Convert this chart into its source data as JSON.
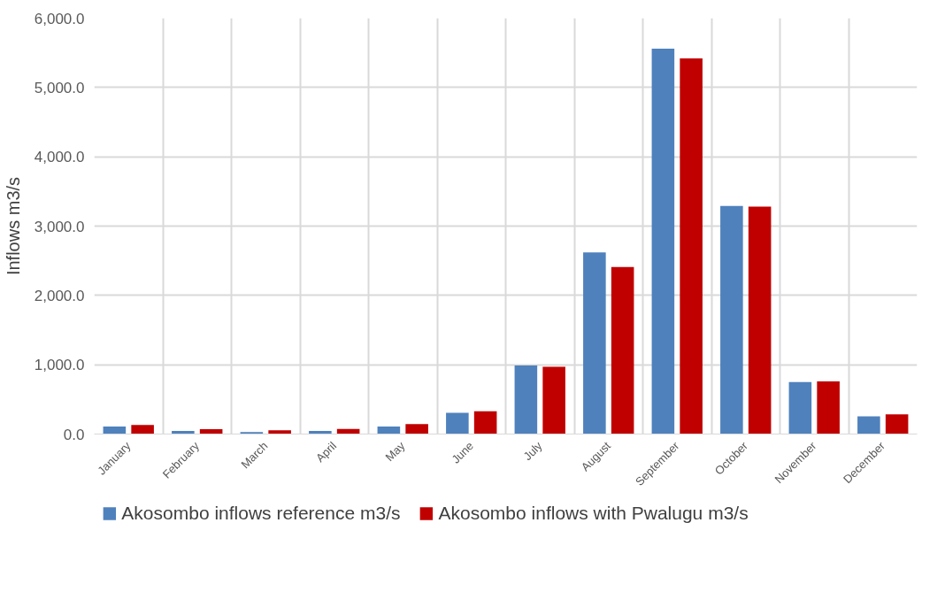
{
  "chart_data": {
    "type": "bar",
    "ylabel": "Inflows m3/s",
    "categories": [
      "January",
      "February",
      "March",
      "April",
      "May",
      "June",
      "July",
      "August",
      "September",
      "October",
      "November",
      "December"
    ],
    "series": [
      {
        "name": "Akosombo inflows reference m3/s",
        "color": "#4f81bd",
        "values": [
          110,
          45,
          30,
          45,
          110,
          305,
          990,
          2620,
          5560,
          3290,
          750,
          255
        ]
      },
      {
        "name": "Akosombo inflows with Pwalugu m3/s",
        "color": "#c00000",
        "values": [
          130,
          70,
          55,
          75,
          145,
          330,
          970,
          2410,
          5420,
          3280,
          760,
          285
        ]
      }
    ],
    "ylim": [
      0,
      6000
    ],
    "yticks": [
      {
        "value": 0,
        "label": "0.0"
      },
      {
        "value": 1000,
        "label": "1,000.0"
      },
      {
        "value": 2000,
        "label": "2,000.0"
      },
      {
        "value": 3000,
        "label": "3,000.0"
      },
      {
        "value": 4000,
        "label": "4,000.0"
      },
      {
        "value": 5000,
        "label": "5,000.0"
      },
      {
        "value": 6000,
        "label": "6,000.0"
      }
    ],
    "grid": true,
    "legend": "bottom"
  }
}
